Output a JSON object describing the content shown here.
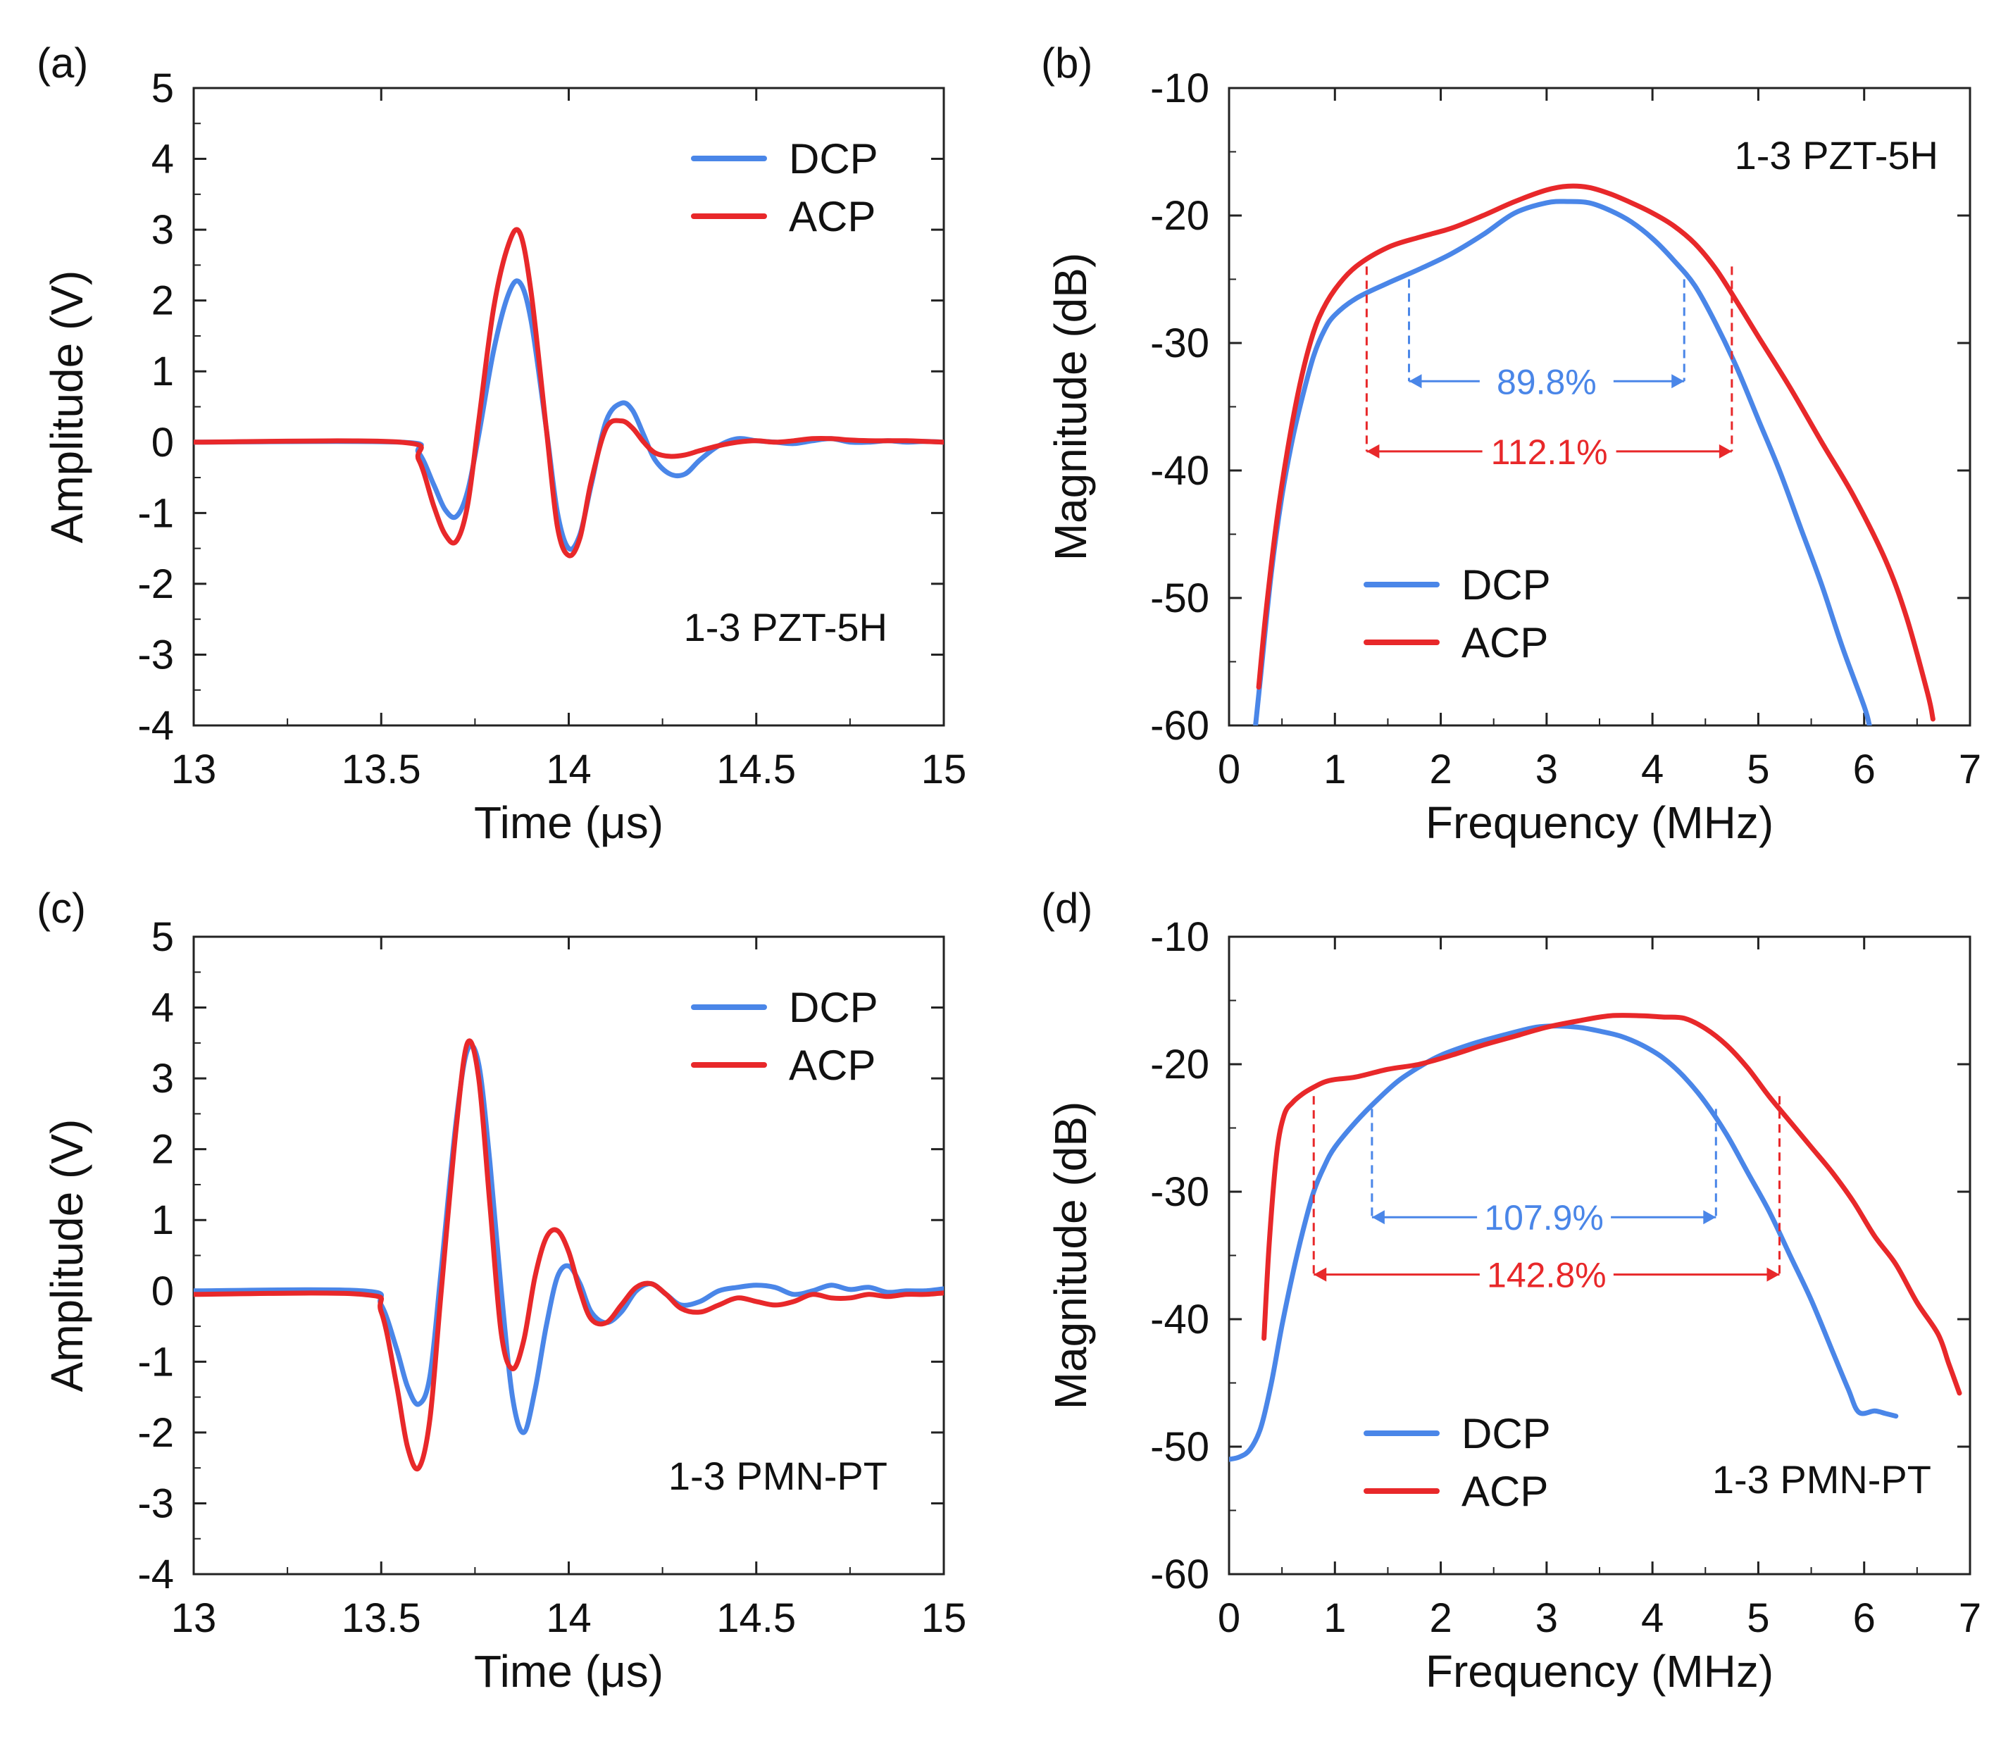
{
  "figure": {
    "panels": [
      "a",
      "b",
      "c",
      "d"
    ]
  },
  "chart_data": [
    {
      "id": "a",
      "panel_label": "(a)",
      "type": "line",
      "title": "",
      "annotation": "1-3 PZT-5H",
      "xlabel": "Time (μs)",
      "ylabel": "Amplitude (V)",
      "xlim": [
        13,
        15
      ],
      "ylim": [
        -4,
        5
      ],
      "xticks": [
        13,
        13.5,
        14,
        14.5,
        15
      ],
      "xtick_labels": [
        "13",
        "13.5",
        "14",
        "14.5",
        "15"
      ],
      "yticks": [
        -4,
        -3,
        -2,
        -1,
        0,
        1,
        2,
        3,
        4,
        5
      ],
      "ytick_labels": [
        "-4",
        "-3",
        "-2",
        "-1",
        "0",
        "1",
        "2",
        "3",
        "4",
        "5"
      ],
      "legend_position": "top-right",
      "grid": false,
      "series": [
        {
          "name": "DCP",
          "color": "#4a86e8",
          "x": [
            13.0,
            13.55,
            13.6,
            13.64,
            13.67,
            13.7,
            13.73,
            13.76,
            13.8,
            13.84,
            13.87,
            13.9,
            13.94,
            13.97,
            14.0,
            14.03,
            14.06,
            14.1,
            14.14,
            14.17,
            14.2,
            14.23,
            14.27,
            14.31,
            14.35,
            14.4,
            14.45,
            14.5,
            14.55,
            14.6,
            14.65,
            14.7,
            14.75,
            14.8,
            14.85,
            14.9,
            14.95,
            15.0
          ],
          "y": [
            0.0,
            0.0,
            -0.15,
            -0.6,
            -0.95,
            -1.05,
            -0.7,
            0.1,
            1.3,
            2.1,
            2.25,
            1.7,
            0.2,
            -1.0,
            -1.5,
            -1.3,
            -0.6,
            0.3,
            0.55,
            0.45,
            0.1,
            -0.25,
            -0.45,
            -0.45,
            -0.25,
            -0.05,
            0.05,
            0.02,
            0.0,
            -0.02,
            0.02,
            0.05,
            0.0,
            0.0,
            0.02,
            0.0,
            0.01,
            0.0
          ]
        },
        {
          "name": "ACP",
          "color": "#e8282a",
          "x": [
            13.0,
            13.55,
            13.6,
            13.64,
            13.67,
            13.7,
            13.73,
            13.76,
            13.8,
            13.84,
            13.87,
            13.9,
            13.94,
            13.97,
            14.0,
            14.03,
            14.06,
            14.1,
            14.14,
            14.17,
            14.2,
            14.23,
            14.27,
            14.31,
            14.35,
            14.4,
            14.45,
            14.5,
            14.55,
            14.6,
            14.65,
            14.7,
            14.75,
            14.8,
            14.85,
            14.9,
            14.95,
            15.0
          ],
          "y": [
            0.0,
            0.0,
            -0.25,
            -0.9,
            -1.3,
            -1.4,
            -0.9,
            0.3,
            1.9,
            2.8,
            2.95,
            2.1,
            0.2,
            -1.2,
            -1.6,
            -1.35,
            -0.55,
            0.2,
            0.3,
            0.2,
            0.0,
            -0.15,
            -0.2,
            -0.18,
            -0.12,
            -0.05,
            0.0,
            0.02,
            0.0,
            0.02,
            0.05,
            0.05,
            0.03,
            0.02,
            0.02,
            0.02,
            0.01,
            0.0
          ]
        }
      ]
    },
    {
      "id": "b",
      "panel_label": "(b)",
      "type": "line",
      "title": "",
      "annotation": "1-3 PZT-5H",
      "xlabel": "Frequency (MHz)",
      "ylabel": "Magnitude (dB)",
      "xlim": [
        0,
        7
      ],
      "ylim": [
        -60,
        -10
      ],
      "xticks": [
        0,
        1,
        2,
        3,
        4,
        5,
        6,
        7
      ],
      "xtick_labels": [
        "0",
        "1",
        "2",
        "3",
        "4",
        "5",
        "6",
        "7"
      ],
      "yticks": [
        -60,
        -50,
        -40,
        -30,
        -20,
        -10
      ],
      "ytick_labels": [
        "-60",
        "-50",
        "-40",
        "-30",
        "-20",
        "-10"
      ],
      "legend_position": "bottom-left",
      "grid": false,
      "bandwidth_markers": [
        {
          "series": "DCP",
          "label": "89.8%",
          "f_low": 1.7,
          "f_high": 4.3,
          "level_db": -25,
          "arrow_db": -33,
          "color": "#4a86e8"
        },
        {
          "series": "ACP",
          "label": "112.1%",
          "f_low": 1.3,
          "f_high": 4.75,
          "level_db": -24,
          "arrow_db": -38.5,
          "color": "#e8282a"
        }
      ],
      "series": [
        {
          "name": "DCP",
          "color": "#4a86e8",
          "x": [
            0.25,
            0.3,
            0.4,
            0.5,
            0.6,
            0.7,
            0.8,
            0.9,
            1.0,
            1.2,
            1.5,
            1.8,
            2.1,
            2.4,
            2.7,
            3.0,
            3.2,
            3.4,
            3.6,
            3.8,
            4.0,
            4.2,
            4.4,
            4.6,
            4.8,
            5.0,
            5.2,
            5.4,
            5.6,
            5.8,
            6.0,
            6.05
          ],
          "y": [
            -60,
            -56,
            -48,
            -42,
            -37.5,
            -34,
            -31,
            -29,
            -27.8,
            -26.5,
            -25.3,
            -24.2,
            -23,
            -21.5,
            -19.8,
            -19.0,
            -18.9,
            -19.0,
            -19.6,
            -20.5,
            -21.8,
            -23.5,
            -25.5,
            -28.5,
            -32,
            -36,
            -40,
            -44.5,
            -49,
            -54,
            -58.5,
            -60
          ]
        },
        {
          "name": "ACP",
          "color": "#e8282a",
          "x": [
            0.28,
            0.35,
            0.45,
            0.55,
            0.65,
            0.75,
            0.85,
            1.0,
            1.2,
            1.5,
            1.8,
            2.1,
            2.4,
            2.7,
            3.0,
            3.2,
            3.4,
            3.6,
            3.8,
            4.0,
            4.2,
            4.4,
            4.6,
            4.8,
            5.0,
            5.3,
            5.6,
            5.9,
            6.2,
            6.4,
            6.6,
            6.65
          ],
          "y": [
            -57,
            -51,
            -44,
            -38.5,
            -34,
            -30.5,
            -28,
            -25.8,
            -24,
            -22.5,
            -21.7,
            -21.0,
            -20.0,
            -18.9,
            -18.0,
            -17.7,
            -17.8,
            -18.3,
            -19.0,
            -19.8,
            -20.8,
            -22.2,
            -24.2,
            -26.8,
            -29.5,
            -33.5,
            -37.8,
            -42,
            -47,
            -51.5,
            -57.5,
            -59.5
          ]
        }
      ]
    },
    {
      "id": "c",
      "panel_label": "(c)",
      "type": "line",
      "title": "",
      "annotation": "1-3 PMN-PT",
      "xlabel": "Time (μs)",
      "ylabel": "Amplitude (V)",
      "xlim": [
        13,
        15
      ],
      "ylim": [
        -4,
        5
      ],
      "xticks": [
        13,
        13.5,
        14,
        14.5,
        15
      ],
      "xtick_labels": [
        "13",
        "13.5",
        "14",
        "14.5",
        "15"
      ],
      "yticks": [
        -4,
        -3,
        -2,
        -1,
        0,
        1,
        2,
        3,
        4,
        5
      ],
      "ytick_labels": [
        "-4",
        "-3",
        "-2",
        "-1",
        "0",
        "1",
        "2",
        "3",
        "4",
        "5"
      ],
      "legend_position": "top-right",
      "grid": false,
      "series": [
        {
          "name": "DCP",
          "color": "#4a86e8",
          "x": [
            13.0,
            13.45,
            13.5,
            13.54,
            13.57,
            13.6,
            13.63,
            13.66,
            13.7,
            13.73,
            13.76,
            13.79,
            13.82,
            13.85,
            13.88,
            13.91,
            13.94,
            13.97,
            14.0,
            14.03,
            14.06,
            14.1,
            14.14,
            14.18,
            14.22,
            14.26,
            14.3,
            14.35,
            14.4,
            14.45,
            14.5,
            14.55,
            14.6,
            14.65,
            14.7,
            14.75,
            14.8,
            14.85,
            14.9,
            14.95,
            15.0
          ],
          "y": [
            0.0,
            0.0,
            -0.2,
            -0.8,
            -1.35,
            -1.6,
            -1.2,
            0.3,
            2.4,
            3.4,
            3.2,
            1.8,
            0.0,
            -1.5,
            -2.0,
            -1.4,
            -0.5,
            0.2,
            0.35,
            0.1,
            -0.3,
            -0.45,
            -0.3,
            0.0,
            0.1,
            -0.05,
            -0.2,
            -0.15,
            0.0,
            0.05,
            0.08,
            0.05,
            -0.05,
            0.0,
            0.08,
            0.02,
            0.05,
            -0.02,
            0.0,
            0.0,
            0.03
          ]
        },
        {
          "name": "ACP",
          "color": "#e8282a",
          "x": [
            13.0,
            13.45,
            13.5,
            13.54,
            13.57,
            13.6,
            13.63,
            13.66,
            13.7,
            13.73,
            13.76,
            13.79,
            13.82,
            13.85,
            13.88,
            13.91,
            13.94,
            13.97,
            14.0,
            14.03,
            14.06,
            14.1,
            14.14,
            14.18,
            14.22,
            14.26,
            14.3,
            14.35,
            14.4,
            14.45,
            14.5,
            14.55,
            14.6,
            14.65,
            14.7,
            14.75,
            14.8,
            14.85,
            14.9,
            14.95,
            15.0
          ],
          "y": [
            -0.05,
            -0.05,
            -0.3,
            -1.3,
            -2.2,
            -2.5,
            -1.8,
            0.0,
            2.3,
            3.5,
            3.0,
            1.2,
            -0.6,
            -1.1,
            -0.7,
            0.2,
            0.75,
            0.85,
            0.55,
            0.0,
            -0.4,
            -0.45,
            -0.2,
            0.05,
            0.1,
            -0.05,
            -0.25,
            -0.3,
            -0.2,
            -0.1,
            -0.15,
            -0.2,
            -0.15,
            -0.05,
            -0.1,
            -0.1,
            -0.05,
            -0.08,
            -0.05,
            -0.05,
            -0.03
          ]
        }
      ]
    },
    {
      "id": "d",
      "panel_label": "(d)",
      "type": "line",
      "title": "",
      "annotation": "1-3 PMN-PT",
      "xlabel": "Frequency (MHz)",
      "ylabel": "Magnitude (dB)",
      "xlim": [
        0,
        7
      ],
      "ylim": [
        -60,
        -10
      ],
      "xticks": [
        0,
        1,
        2,
        3,
        4,
        5,
        6,
        7
      ],
      "xtick_labels": [
        "0",
        "1",
        "2",
        "3",
        "4",
        "5",
        "6",
        "7"
      ],
      "yticks": [
        -60,
        -50,
        -40,
        -30,
        -20,
        -10
      ],
      "ytick_labels": [
        "-60",
        "-50",
        "-40",
        "-30",
        "-20",
        "-10"
      ],
      "legend_position": "bottom-left",
      "grid": false,
      "bandwidth_markers": [
        {
          "series": "DCP",
          "label": "107.9%",
          "f_low": 1.35,
          "f_high": 4.6,
          "level_db": -23.5,
          "arrow_db": -32,
          "color": "#4a86e8"
        },
        {
          "series": "ACP",
          "label": "142.8%",
          "f_low": 0.8,
          "f_high": 5.2,
          "level_db": -22.5,
          "arrow_db": -36.5,
          "color": "#e8282a"
        }
      ],
      "series": [
        {
          "name": "DCP",
          "color": "#4a86e8",
          "x": [
            0.0,
            0.1,
            0.2,
            0.3,
            0.4,
            0.5,
            0.6,
            0.7,
            0.8,
            0.9,
            1.0,
            1.2,
            1.4,
            1.6,
            1.8,
            2.0,
            2.3,
            2.6,
            2.9,
            3.1,
            3.3,
            3.5,
            3.7,
            3.9,
            4.1,
            4.3,
            4.5,
            4.7,
            4.9,
            5.1,
            5.3,
            5.5,
            5.7,
            5.85,
            5.95,
            6.1,
            6.2,
            6.3
          ],
          "y": [
            -51,
            -50.8,
            -50.2,
            -48.5,
            -45,
            -40.5,
            -36.5,
            -33,
            -30,
            -28,
            -26.5,
            -24.5,
            -22.8,
            -21.3,
            -20.2,
            -19.3,
            -18.4,
            -17.7,
            -17.1,
            -17.0,
            -17.1,
            -17.4,
            -17.8,
            -18.5,
            -19.5,
            -21.0,
            -23.0,
            -25.5,
            -28.5,
            -31.5,
            -35,
            -38.5,
            -42.5,
            -45.5,
            -47.3,
            -47.2,
            -47.4,
            -47.6
          ]
        },
        {
          "name": "ACP",
          "color": "#e8282a",
          "x": [
            0.33,
            0.38,
            0.45,
            0.52,
            0.6,
            0.7,
            0.8,
            0.9,
            1.0,
            1.2,
            1.5,
            1.8,
            2.1,
            2.4,
            2.7,
            3.0,
            3.3,
            3.6,
            3.9,
            4.1,
            4.3,
            4.5,
            4.7,
            4.9,
            5.1,
            5.3,
            5.5,
            5.7,
            5.9,
            6.1,
            6.3,
            6.5,
            6.7,
            6.8,
            6.9
          ],
          "y": [
            -41.5,
            -34,
            -27,
            -24,
            -23,
            -22.3,
            -21.8,
            -21.4,
            -21.2,
            -21.0,
            -20.4,
            -20.0,
            -19.3,
            -18.5,
            -17.8,
            -17.1,
            -16.6,
            -16.2,
            -16.2,
            -16.3,
            -16.4,
            -17.2,
            -18.5,
            -20.3,
            -22.5,
            -24.5,
            -26.5,
            -28.5,
            -30.8,
            -33.5,
            -35.7,
            -38.7,
            -41.2,
            -43.5,
            -45.8
          ]
        }
      ]
    }
  ]
}
